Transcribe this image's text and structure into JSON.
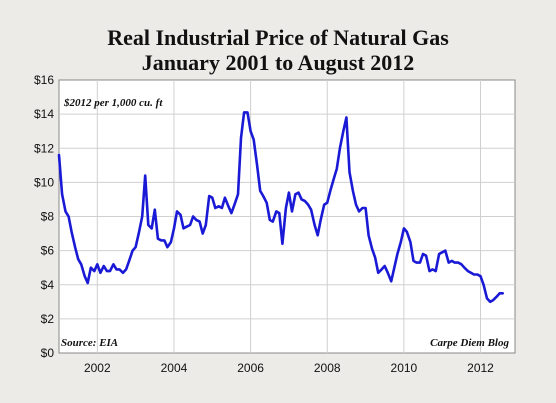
{
  "chart_data": {
    "type": "line",
    "title_line1": "Real Industrial Price of Natural Gas",
    "title_line2": "January 2001 to August 2012",
    "unit_label": "$2012 per 1,000 cu. ft",
    "source": "Source: EIA",
    "credit": "Carpe Diem Blog",
    "xlim": [
      2001.0,
      2012.9
    ],
    "ylim": [
      0,
      16
    ],
    "y_ticks": [
      0,
      2,
      4,
      6,
      8,
      10,
      12,
      14,
      16
    ],
    "y_tick_labels": [
      "$0",
      "$2",
      "$4",
      "$6",
      "$8",
      "$10",
      "$12",
      "$14",
      "$16"
    ],
    "x_ticks": [
      2002,
      2004,
      2006,
      2008,
      2010,
      2012
    ],
    "x_tick_labels": [
      "2002",
      "2004",
      "2006",
      "2008",
      "2010",
      "2012"
    ],
    "grid": true,
    "line_color": "#1a1ad6",
    "series": [
      {
        "x": [
          2001.0,
          2001.08,
          2001.17,
          2001.25,
          2001.33,
          2001.42,
          2001.5,
          2001.58,
          2001.67,
          2001.75,
          2001.83,
          2001.92,
          2002.0,
          2002.08,
          2002.17,
          2002.25,
          2002.33,
          2002.42,
          2002.5,
          2002.58,
          2002.67,
          2002.75,
          2002.83,
          2002.92,
          2003.0,
          2003.08,
          2003.17,
          2003.25,
          2003.33,
          2003.42,
          2003.5,
          2003.58,
          2003.67,
          2003.75,
          2003.83,
          2003.92,
          2004.0,
          2004.08,
          2004.17,
          2004.25,
          2004.33,
          2004.42,
          2004.5,
          2004.58,
          2004.67,
          2004.75,
          2004.83,
          2004.92,
          2005.0,
          2005.08,
          2005.17,
          2005.25,
          2005.33,
          2005.42,
          2005.5,
          2005.58,
          2005.67,
          2005.75,
          2005.83,
          2005.92,
          2006.0,
          2006.08,
          2006.17,
          2006.25,
          2006.33,
          2006.42,
          2006.5,
          2006.58,
          2006.67,
          2006.75,
          2006.83,
          2006.92,
          2007.0,
          2007.08,
          2007.17,
          2007.25,
          2007.33,
          2007.42,
          2007.5,
          2007.58,
          2007.67,
          2007.75,
          2007.83,
          2007.92,
          2008.0,
          2008.08,
          2008.17,
          2008.25,
          2008.33,
          2008.42,
          2008.5,
          2008.58,
          2008.67,
          2008.75,
          2008.83,
          2008.92,
          2009.0,
          2009.08,
          2009.17,
          2009.25,
          2009.33,
          2009.42,
          2009.5,
          2009.58,
          2009.67,
          2009.75,
          2009.83,
          2009.92,
          2010.0,
          2010.08,
          2010.17,
          2010.25,
          2010.33,
          2010.42,
          2010.5,
          2010.58,
          2010.67,
          2010.75,
          2010.83,
          2010.92,
          2011.0,
          2011.08,
          2011.17,
          2011.25,
          2011.33,
          2011.42,
          2011.5,
          2011.58,
          2011.67,
          2011.75,
          2011.83,
          2011.92,
          2012.0,
          2012.08,
          2012.17,
          2012.25,
          2012.33,
          2012.42,
          2012.5,
          2012.58
        ],
        "y": [
          11.6,
          9.3,
          8.3,
          8.0,
          7.1,
          6.2,
          5.5,
          5.2,
          4.5,
          4.1,
          5.0,
          4.8,
          5.2,
          4.7,
          5.1,
          4.8,
          4.8,
          5.2,
          4.9,
          4.9,
          4.7,
          4.9,
          5.4,
          6.0,
          6.2,
          7.0,
          8.0,
          10.4,
          7.5,
          7.3,
          8.4,
          6.7,
          6.6,
          6.6,
          6.2,
          6.5,
          7.3,
          8.3,
          8.1,
          7.3,
          7.4,
          7.5,
          8.0,
          7.8,
          7.7,
          7.0,
          7.5,
          9.2,
          9.1,
          8.5,
          8.6,
          8.5,
          9.1,
          8.6,
          8.2,
          8.7,
          9.3,
          12.6,
          14.1,
          14.1,
          13.0,
          12.5,
          11.0,
          9.5,
          9.2,
          8.8,
          7.8,
          7.7,
          8.3,
          8.2,
          6.4,
          8.5,
          9.4,
          8.3,
          9.3,
          9.4,
          9.0,
          8.9,
          8.7,
          8.4,
          7.5,
          6.9,
          7.8,
          8.7,
          8.8,
          9.5,
          10.2,
          10.8,
          12.0,
          13.0,
          13.8,
          10.6,
          9.5,
          8.7,
          8.3,
          8.5,
          8.5,
          6.9,
          6.1,
          5.6,
          4.7,
          4.9,
          5.1,
          4.7,
          4.2,
          5.0,
          5.8,
          6.5,
          7.3,
          7.1,
          6.5,
          5.4,
          5.3,
          5.3,
          5.8,
          5.7,
          4.8,
          4.9,
          4.8,
          5.8,
          5.9,
          6.0,
          5.3,
          5.4,
          5.3,
          5.3,
          5.2,
          5.0,
          4.8,
          4.7,
          4.6,
          4.6,
          4.5,
          4.0,
          3.2,
          3.0,
          3.1,
          3.3,
          3.5,
          3.5
        ]
      }
    ]
  }
}
